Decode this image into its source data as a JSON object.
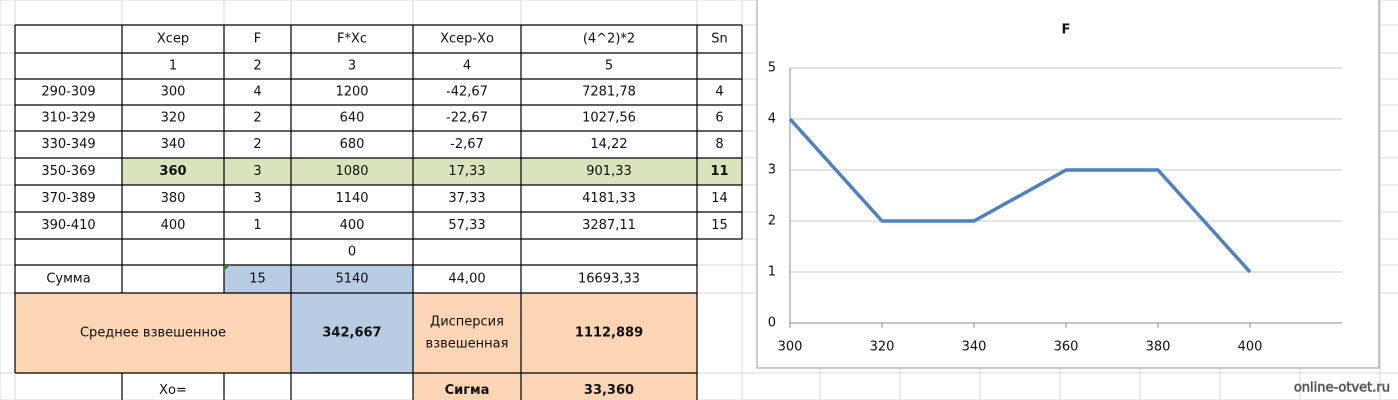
{
  "table": {
    "header": [
      "Хсер",
      "F",
      "F*Хс",
      "Хсер-Хо",
      "(4^2)*2",
      "Sn"
    ],
    "column_numbers": [
      "1",
      "2",
      "3",
      "4",
      "5"
    ],
    "rows": [
      {
        "range": "290-309",
        "xcep": "300",
        "f": "4",
        "fxc": "1200",
        "diff": "-42,67",
        "sq": "7281,78",
        "sn": "4"
      },
      {
        "range": "310-329",
        "xcep": "320",
        "f": "2",
        "fxc": "640",
        "diff": "-22,67",
        "sq": "1027,56",
        "sn": "6"
      },
      {
        "range": "330-349",
        "xcep": "340",
        "f": "2",
        "fxc": "680",
        "diff": "-2,67",
        "sq": "14,22",
        "sn": "8"
      },
      {
        "range": "350-369",
        "xcep": "360",
        "f": "3",
        "fxc": "1080",
        "diff": "17,33",
        "sq": "901,33",
        "sn": "11",
        "highlight": true
      },
      {
        "range": "370-389",
        "xcep": "380",
        "f": "3",
        "fxc": "1140",
        "diff": "37,33",
        "sq": "4181,33",
        "sn": "14"
      },
      {
        "range": "390-410",
        "xcep": "400",
        "f": "1",
        "fxc": "400",
        "diff": "57,33",
        "sq": "3287,11",
        "sn": "15"
      }
    ],
    "zero": "0",
    "sum": {
      "label": "Сумма",
      "f": "15",
      "fxc": "5140",
      "diff": "44,00",
      "sq": "16693,33"
    },
    "mean_label": "Среднее взвешенное",
    "mean": "342,667",
    "dispersion_label": [
      "Дисперсия",
      "взвешенная"
    ],
    "dispersion": "1112,889",
    "xo_label": "Хо=",
    "sigma_label": "Сигма",
    "sigma": "33,360"
  },
  "watermark": "online-otvet.ru",
  "chart_data": {
    "type": "line",
    "title": "F",
    "x": [
      300,
      320,
      340,
      360,
      380,
      400
    ],
    "values": [
      4,
      2,
      2,
      3,
      3,
      1
    ],
    "color": "#4f81bd",
    "xlim": [
      300,
      420
    ],
    "xticks": [
      300,
      320,
      340,
      360,
      380,
      400
    ],
    "ylim": [
      0,
      5
    ],
    "yticks": [
      0,
      1,
      2,
      3,
      4,
      5
    ],
    "grid": true
  }
}
